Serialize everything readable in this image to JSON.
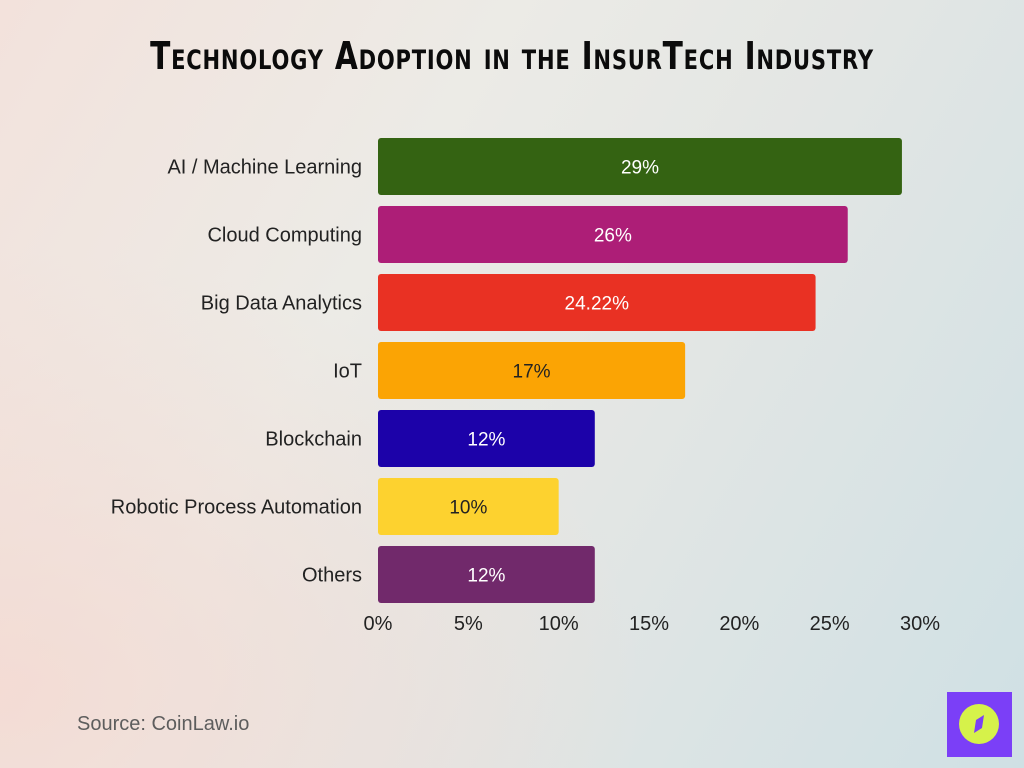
{
  "chart_data": {
    "type": "bar",
    "orientation": "horizontal",
    "title": "Technology Adoption in the InsurTech Industry",
    "categories": [
      "AI / Machine Learning",
      "Cloud Computing",
      "Big Data Analytics",
      "IoT",
      "Blockchain",
      "Robotic Process Automation",
      "Others"
    ],
    "values": [
      29,
      26,
      24.22,
      17,
      12,
      10,
      12
    ],
    "data_labels": [
      "29%",
      "26%",
      "24.22%",
      "17%",
      "12%",
      "10%",
      "12%"
    ],
    "colors": [
      "#346312",
      "#ad1e77",
      "#e93123",
      "#fba404",
      "#1c02a9",
      "#fdd22f",
      "#71296b"
    ],
    "label_colors": [
      "#ffffff",
      "#ffffff",
      "#ffffff",
      "#222222",
      "#ffffff",
      "#222222",
      "#ffffff"
    ],
    "xlim": [
      0,
      30
    ],
    "xticks": [
      0,
      5,
      10,
      15,
      20,
      25,
      30
    ],
    "xtick_labels": [
      "0%",
      "5%",
      "10%",
      "15%",
      "20%",
      "25%",
      "30%"
    ],
    "grid": false
  },
  "source": "Source: CoinLaw.io",
  "logo": {
    "icon": "compass-icon",
    "bg_color": "#7b3ff7",
    "fg_color": "#d6f24a"
  }
}
